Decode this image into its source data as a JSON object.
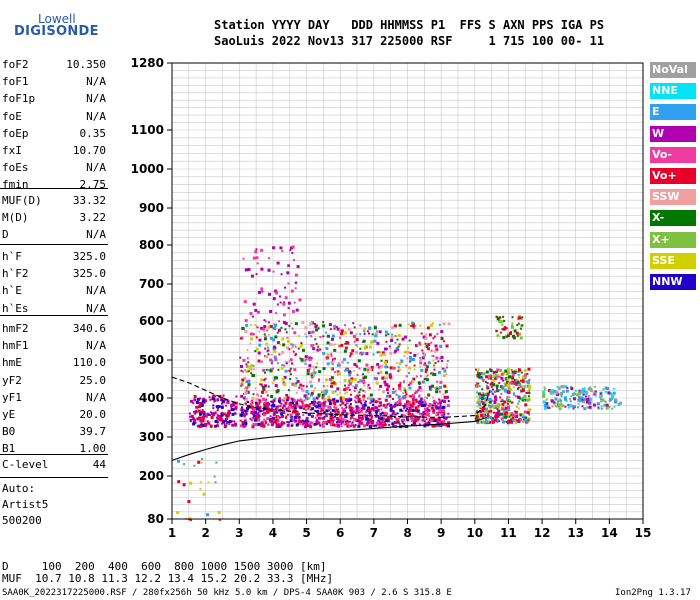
{
  "logo": {
    "brand": "Lowell",
    "product": "DIGISONDE"
  },
  "header": {
    "line1": "Station YYYY DAY   DDD HHMMSS P1  FFS S AXN PPS IGA PS",
    "line2": "SaoLuis 2022 Nov13 317 225000 RSF     1 715 100 00- 11"
  },
  "params": {
    "group1": [
      {
        "k": "foF2",
        "v": "10.350"
      },
      {
        "k": "foF1",
        "v": "N/A"
      },
      {
        "k": "foF1p",
        "v": "N/A"
      },
      {
        "k": "foE",
        "v": "N/A"
      },
      {
        "k": "foEp",
        "v": "0.35"
      },
      {
        "k": "fxI",
        "v": "10.70"
      },
      {
        "k": "foEs",
        "v": "N/A"
      },
      {
        "k": "fmin",
        "v": "2.75"
      }
    ],
    "group2": [
      {
        "k": "MUF(D)",
        "v": "33.32"
      },
      {
        "k": "M(D)",
        "v": "3.22"
      },
      {
        "k": "D",
        "v": "N/A"
      }
    ],
    "group3": [
      {
        "k": "h`F",
        "v": "325.0"
      },
      {
        "k": "h`F2",
        "v": "325.0"
      },
      {
        "k": "h`E",
        "v": "N/A"
      },
      {
        "k": "h`Es",
        "v": "N/A"
      }
    ],
    "group4": [
      {
        "k": "hmF2",
        "v": "340.6"
      },
      {
        "k": "hmF1",
        "v": "N/A"
      },
      {
        "k": "hmE",
        "v": "110.0"
      },
      {
        "k": "yF2",
        "v": "25.0"
      },
      {
        "k": "yF1",
        "v": "N/A"
      },
      {
        "k": "yE",
        "v": "20.0"
      },
      {
        "k": "B0",
        "v": "39.7"
      },
      {
        "k": "B1",
        "v": "1.00"
      }
    ],
    "clevel": {
      "k": "C-level",
      "v": "44"
    }
  },
  "auto": {
    "label": "Auto:",
    "artist": "Artist5",
    "code": "500200"
  },
  "footer": {
    "d_row": "D     100  200  400  600  800 1000 1500 3000 [km]",
    "muf_row": "MUF  10.7 10.8 11.3 12.2 13.4 15.2 20.2 33.3 [MHz]",
    "file_info": "SAA0K_2022317225000.RSF / 280fx256h 50 kHz 5.0 km / DPS-4 SAA0K 903 / 2.6 S 315.8 E",
    "version": "Ion2Png 1.3.17"
  },
  "legend": [
    {
      "label": "NoVal",
      "color": "#a0a0a0"
    },
    {
      "label": "NNE",
      "color": "#00e4f4"
    },
    {
      "label": "E",
      "color": "#30a0f0"
    },
    {
      "label": "W",
      "color": "#b000b0"
    },
    {
      "label": "Vo-",
      "color": "#f03ca0"
    },
    {
      "label": "Vo+",
      "color": "#e8002c"
    },
    {
      "label": "SSW",
      "color": "#f0a0a0"
    },
    {
      "label": "X-",
      "color": "#007800"
    },
    {
      "label": "X+",
      "color": "#80c040"
    },
    {
      "label": "SSE",
      "color": "#d0d000"
    },
    {
      "label": "NNW",
      "color": "#2000c8"
    }
  ],
  "chart_data": {
    "type": "scatter",
    "title": "",
    "xlabel": "",
    "ylabel": "",
    "xlim": [
      1,
      15
    ],
    "ylim": [
      80,
      1280
    ],
    "x_ticks": [
      "1",
      "2",
      "3",
      "4",
      "5",
      "6",
      "7",
      "8",
      "9",
      "10",
      "11",
      "12",
      "13",
      "14",
      "15"
    ],
    "y_ticks": [
      {
        "v": 80,
        "label": "80"
      },
      {
        "v": 200,
        "label": "200"
      },
      {
        "v": 300,
        "label": "300"
      },
      {
        "v": 400,
        "label": "400"
      },
      {
        "v": 500,
        "label": "500"
      },
      {
        "v": 600,
        "label": "600"
      },
      {
        "v": 700,
        "label": "700"
      },
      {
        "v": 800,
        "label": "800"
      },
      {
        "v": 900,
        "label": "900"
      },
      {
        "v": 1000,
        "label": "1000"
      },
      {
        "v": 1100,
        "label": "1100"
      },
      {
        "v": 1280,
        "label": "1280"
      }
    ],
    "grid": true,
    "y_scale": "ionogram (compressed toward top)",
    "clusters": [
      {
        "x": [
          1.5,
          2.9
        ],
        "y": [
          330,
          410
        ],
        "n": 180,
        "colors": [
          "#2000c8",
          "#b000b0",
          "#e8002c"
        ]
      },
      {
        "x": [
          3.0,
          9.2
        ],
        "y": [
          330,
          400
        ],
        "n": 900,
        "colors": [
          "#e8002c",
          "#b000b0",
          "#f03ca0",
          "#2000c8"
        ]
      },
      {
        "x": [
          3.0,
          9.2
        ],
        "y": [
          400,
          600
        ],
        "n": 800,
        "colors": [
          "#b000b0",
          "#f03ca0",
          "#e8002c",
          "#d0d000",
          "#007800",
          "#30a0f0",
          "#f0a0a0"
        ]
      },
      {
        "x": [
          3.0,
          4.8
        ],
        "y": [
          600,
          800
        ],
        "n": 70,
        "colors": [
          "#b000b0",
          "#f03ca0"
        ]
      },
      {
        "x": [
          10.0,
          11.6
        ],
        "y": [
          340,
          480
        ],
        "n": 400,
        "colors": [
          "#007800",
          "#80c040",
          "#d0d000",
          "#e8002c",
          "#f03ca0",
          "#b000b0",
          "#30a0f0"
        ]
      },
      {
        "x": [
          10.6,
          11.4
        ],
        "y": [
          560,
          620
        ],
        "n": 50,
        "colors": [
          "#007800",
          "#80c040",
          "#e8002c"
        ]
      },
      {
        "x": [
          12.0,
          14.3
        ],
        "y": [
          375,
          435
        ],
        "n": 180,
        "colors": [
          "#30a0f0",
          "#80c040",
          "#00e4f4",
          "#a0a0a0",
          "#b000b0"
        ]
      },
      {
        "x": [
          1.1,
          2.4
        ],
        "y": [
          80,
          250
        ],
        "n": 25,
        "colors": [
          "#30a0f0",
          "#d0d000",
          "#e8002c"
        ]
      }
    ],
    "trace_solid": [
      [
        1.0,
        240
      ],
      [
        1.5,
        255
      ],
      [
        2.0,
        268
      ],
      [
        2.5,
        280
      ],
      [
        3.0,
        290
      ],
      [
        4.0,
        300
      ],
      [
        5.0,
        308
      ],
      [
        6.0,
        315
      ],
      [
        7.0,
        322
      ],
      [
        8.0,
        328
      ],
      [
        9.0,
        333
      ],
      [
        10.0,
        340
      ],
      [
        10.35,
        350
      ]
    ],
    "trace_dashed": [
      [
        1.0,
        455
      ],
      [
        1.5,
        440
      ],
      [
        2.0,
        420
      ],
      [
        2.5,
        400
      ],
      [
        3.0,
        385
      ],
      [
        3.5,
        375
      ],
      [
        4.0,
        370
      ],
      [
        5.0,
        362
      ],
      [
        6.0,
        357
      ],
      [
        7.0,
        355
      ],
      [
        8.0,
        352
      ],
      [
        9.0,
        350
      ],
      [
        10.0,
        355
      ],
      [
        10.3,
        380
      ],
      [
        10.45,
        420
      ]
    ]
  }
}
